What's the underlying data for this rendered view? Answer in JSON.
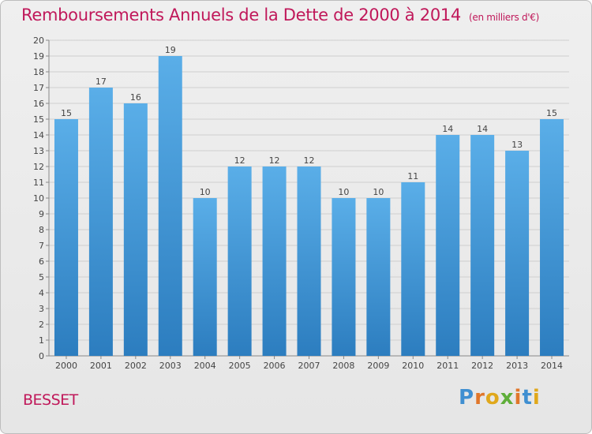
{
  "title": "Remboursements Annuels de la Dette de 2000 à 2014",
  "title_unit": "(en milliers d'€)",
  "commune": "BESSET",
  "logo_text": "Proxiti",
  "colors": {
    "title": "#c0185a",
    "bar_top": "#5aaee8",
    "bar_bottom": "#2c7dbf",
    "grid": "#cfcfcf"
  },
  "chart_data": {
    "type": "bar",
    "categories": [
      "2000",
      "2001",
      "2002",
      "2003",
      "2004",
      "2005",
      "2006",
      "2007",
      "2008",
      "2009",
      "2010",
      "2011",
      "2012",
      "2013",
      "2014"
    ],
    "values": [
      15,
      17,
      16,
      19,
      10,
      12,
      12,
      12,
      10,
      10,
      11,
      14,
      14,
      13,
      15
    ],
    "ylim": [
      0,
      20
    ],
    "yticks": [
      0,
      1,
      2,
      3,
      4,
      5,
      6,
      7,
      8,
      9,
      10,
      11,
      12,
      13,
      14,
      15,
      16,
      17,
      18,
      19,
      20
    ],
    "grid": true,
    "data_labels": true
  }
}
